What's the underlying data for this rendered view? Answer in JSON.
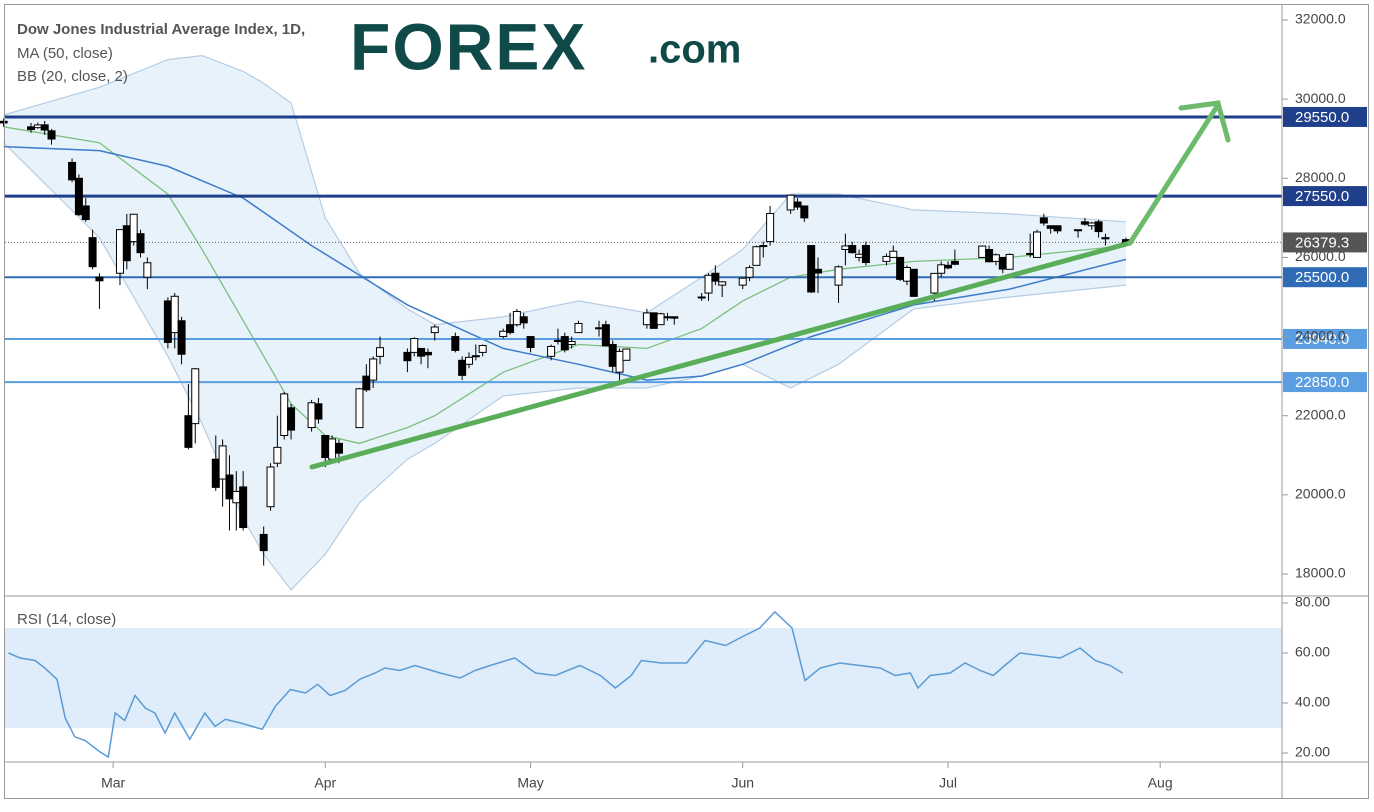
{
  "logo": {
    "brand": "FOREX",
    "suffix": ".com"
  },
  "chart_data": [
    {
      "type": "candlestick",
      "title": "Dow Jones Industrial Average Index, 1D,",
      "xlim": [
        13.2,
        199.8
      ],
      "ylim": [
        17469,
        32379
      ],
      "yticks": [
        {
          "value": 18000,
          "label": "18000.0"
        },
        {
          "value": 20000,
          "label": "20000.0"
        },
        {
          "value": 22000,
          "label": "22000.0"
        },
        {
          "value": 24000,
          "label": "24000.0"
        },
        {
          "value": 26000,
          "label": "26000.0"
        },
        {
          "value": 28000,
          "label": "28000.0"
        },
        {
          "value": 30000,
          "label": "30000.0"
        },
        {
          "value": 32000,
          "label": "32000.0"
        }
      ],
      "up_color": "#ffffff",
      "down_color": "#000000",
      "border_color": "#000000",
      "x": [
        13,
        17,
        18,
        19,
        20,
        23,
        24,
        25,
        26,
        27,
        30,
        31,
        32,
        33,
        34,
        37,
        38,
        39,
        40,
        41,
        44,
        45,
        46,
        47,
        48,
        51,
        52,
        53,
        54,
        55,
        58,
        59,
        60,
        61,
        62,
        65,
        66,
        67,
        68,
        72,
        73,
        74,
        75,
        76,
        79,
        80,
        81,
        82,
        83,
        86,
        87,
        88,
        89,
        90,
        93,
        94,
        95,
        96,
        97,
        100,
        101,
        102,
        103,
        104,
        107,
        108,
        109,
        110,
        111,
        115,
        116,
        117,
        118,
        121,
        122,
        123,
        124,
        125,
        128,
        129,
        130,
        131,
        132,
        135,
        136,
        137,
        138,
        139,
        142,
        143,
        144,
        145,
        146,
        149,
        150,
        151,
        152,
        156,
        157,
        158,
        159,
        160,
        163,
        164,
        165,
        166,
        167,
        170,
        171,
        172,
        173,
        174,
        177
      ],
      "open": [
        29440,
        29300,
        29280,
        29350,
        29200,
        28400,
        28000,
        27300,
        26500,
        25500,
        25600,
        26800,
        26400,
        26600,
        25500,
        24900,
        24100,
        24400,
        22000,
        21800,
        20900,
        20400,
        20500,
        19800,
        20200,
        19000,
        19700,
        20800,
        21500,
        22200,
        21700,
        22300,
        21500,
        20900,
        21300,
        21700,
        23000,
        22900,
        23500,
        23600,
        23600,
        23700,
        23600,
        24100,
        24000,
        23400,
        23300,
        23500,
        23600,
        24000,
        24300,
        24300,
        24500,
        24000,
        23500,
        23900,
        24000,
        23800,
        24100,
        24200,
        24300,
        23800,
        23100,
        23400,
        24300,
        24600,
        24300,
        24500,
        24500,
        25000,
        25100,
        25600,
        25300,
        25300,
        25500,
        25800,
        26300,
        26400,
        27200,
        27400,
        27300,
        26300,
        25700,
        25300,
        26200,
        26300,
        26000,
        26300,
        25900,
        26000,
        26000,
        25400,
        25700,
        25100,
        25600,
        25800,
        25900,
        26000,
        26200,
        25900,
        26000,
        25700,
        26100,
        26000,
        27000,
        26800,
        26800,
        26700,
        26900,
        26800,
        26900,
        26500,
        26450
      ],
      "high": [
        29510,
        29400,
        29410,
        29450,
        29250,
        28500,
        28100,
        27500,
        26700,
        25600,
        26710,
        27100,
        27100,
        26700,
        26000,
        24990,
        25100,
        24500,
        22800,
        23200,
        21500,
        21400,
        21000,
        20600,
        20600,
        19200,
        20800,
        22000,
        22600,
        22300,
        22400,
        22450,
        21500,
        21500,
        21400,
        22700,
        23300,
        23500,
        24000,
        23700,
        23980,
        23700,
        23700,
        24300,
        24100,
        23500,
        23600,
        23800,
        23800,
        24200,
        24600,
        24700,
        24600,
        24000,
        23800,
        24200,
        24100,
        24000,
        24400,
        24400,
        24400,
        23900,
        23700,
        23700,
        24700,
        24600,
        24600,
        24600,
        24500,
        25100,
        25600,
        25800,
        25400,
        25500,
        25800,
        26300,
        26400,
        27300,
        27580,
        27500,
        27300,
        26300,
        26000,
        25800,
        26600,
        26400,
        26200,
        26400,
        26100,
        26300,
        26000,
        25800,
        25700,
        25600,
        25900,
        25900,
        26200,
        26300,
        26300,
        26100,
        26000,
        26100,
        26600,
        26700,
        27100,
        26800,
        26800,
        26700,
        27000,
        26900,
        26950,
        26600,
        26500
      ],
      "low": [
        29300,
        29150,
        29250,
        29100,
        28850,
        27900,
        27050,
        26900,
        25700,
        24700,
        25300,
        25700,
        26300,
        26000,
        25200,
        23700,
        23700,
        23300,
        21150,
        21300,
        20100,
        19700,
        19100,
        19100,
        19100,
        18213,
        19600,
        20700,
        21400,
        21400,
        21600,
        21800,
        20700,
        20800,
        20800,
        21700,
        22600,
        22700,
        23300,
        23100,
        23500,
        23300,
        23200,
        23900,
        23600,
        22900,
        23200,
        23400,
        23500,
        23950,
        24050,
        24250,
        24200,
        23600,
        23400,
        23800,
        23600,
        23700,
        24100,
        24000,
        23750,
        23100,
        22800,
        23400,
        24200,
        24200,
        24300,
        24400,
        24300,
        24900,
        24900,
        25300,
        25000,
        25200,
        25400,
        25800,
        26000,
        26300,
        27100,
        27200,
        26900,
        25100,
        25100,
        24850,
        25800,
        26100,
        25900,
        25800,
        25800,
        26000,
        25400,
        25300,
        25000,
        24900,
        25500,
        25700,
        25800,
        26000,
        25880,
        25800,
        25600,
        25700,
        26000,
        26000,
        26800,
        26600,
        26600,
        26500,
        26800,
        26700,
        26500,
        26300,
        26350
      ],
      "close": [
        29398,
        29232,
        29348,
        29219,
        28992,
        27961,
        27081,
        26957,
        25766,
        25409,
        26703,
        25917,
        27091,
        26121,
        25865,
        23851,
        25018,
        23553,
        21200,
        23186,
        20189,
        21237,
        19899,
        20087,
        19174,
        18592,
        20704,
        21200,
        22552,
        21637,
        22327,
        21917,
        20943,
        21413,
        21053,
        22680,
        22654,
        23434,
        23719,
        23390,
        23950,
        23505,
        23538,
        24242,
        23650,
        23019,
        23475,
        23516,
        23775,
        24134,
        24102,
        24634,
        24346,
        23724,
        23750,
        23883,
        23664,
        23875,
        24331,
        24222,
        23765,
        23248,
        23625,
        23685,
        24597,
        24207,
        24576,
        24474,
        24465,
        24995,
        25548,
        25401,
        25383,
        25475,
        25742,
        26270,
        26282,
        27111,
        27572,
        27273,
        27000,
        25128,
        25606,
        25763,
        26290,
        26120,
        26080,
        25871,
        26025,
        26156,
        25445,
        25746,
        25016,
        25596,
        25813,
        25735,
        25827,
        26287,
        25890,
        26067,
        25706,
        26075,
        26086,
        26643,
        26870,
        26735,
        26672,
        26681,
        26840,
        26870,
        26653,
        26470,
        26379.3
      ],
      "ma": {
        "name": "MA (50, close)",
        "color": "#3d7cc9",
        "x": [
          13,
          27,
          37,
          48,
          58,
          72,
          86,
          97,
          107,
          115,
          121,
          131,
          146,
          160,
          177
        ],
        "values": [
          28800,
          28700,
          28300,
          27500,
          26300,
          24800,
          23700,
          23300,
          22900,
          23000,
          23300,
          24000,
          24800,
          25200,
          25950
        ]
      },
      "bb": {
        "name": "BB (20, close, 2)",
        "color": "#b5cde4",
        "basis_color": "#7cc07c",
        "fill": "#e8f2fb",
        "x": [
          13,
          27,
          37,
          42,
          48,
          51,
          55,
          60,
          65,
          72,
          76,
          86,
          97,
          107,
          115,
          121,
          128,
          135,
          146,
          160,
          177
        ],
        "upper": [
          29600,
          30300,
          31000,
          31100,
          30700,
          30400,
          29900,
          27000,
          25600,
          24700,
          24300,
          24500,
          24900,
          24600,
          25500,
          26200,
          27600,
          27600,
          27200,
          27100,
          26900
        ],
        "basis": [
          29300,
          28900,
          27600,
          26200,
          24400,
          23500,
          22300,
          21500,
          21300,
          21700,
          22000,
          23100,
          23800,
          23700,
          24200,
          24900,
          25500,
          25700,
          25900,
          26000,
          26300
        ],
        "lower": [
          28900,
          26500,
          23500,
          21800,
          19400,
          18500,
          17600,
          18500,
          19800,
          20900,
          21300,
          22500,
          22700,
          22700,
          23000,
          23300,
          22700,
          23300,
          24700,
          25000,
          25300
        ]
      },
      "levels": [
        {
          "value": 29550,
          "label": "29550.0",
          "color": "#1f3f8a"
        },
        {
          "value": 27550,
          "label": "27550.0",
          "color": "#1f3f8a"
        },
        {
          "value": 25500,
          "label": "25500.0",
          "color": "#2f6cb5"
        },
        {
          "value": 23940,
          "label": "23940.0",
          "color": "#5a9de0"
        },
        {
          "value": 22850,
          "label": "22850.0",
          "color": "#5a9de0"
        }
      ],
      "last_price": 26379.3,
      "last_color": "#555555"
    },
    {
      "type": "line",
      "title": "RSI (14, close)",
      "color": "#5b9bd5",
      "band": [
        30,
        70
      ],
      "band_color": "#d6e8f8",
      "xlim": [
        13.2,
        199.8
      ],
      "ylim": [
        17.2,
        82.4
      ],
      "yticks": [
        {
          "value": 20,
          "label": "20.00"
        },
        {
          "value": 40,
          "label": "40.00"
        },
        {
          "value": 60,
          "label": "60.00"
        },
        {
          "value": 80,
          "label": "80.00"
        }
      ],
      "xticks": [
        {
          "value": 29,
          "label": "Mar"
        },
        {
          "value": 60,
          "label": "Apr"
        },
        {
          "value": 90,
          "label": "May"
        },
        {
          "value": 121,
          "label": "Jun"
        },
        {
          "value": 151,
          "label": "Jul"
        },
        {
          "value": 182,
          "label": "Aug"
        }
      ],
      "x": [
        13.7,
        15.4,
        17.6,
        19,
        20.8,
        22,
        23.4,
        24.9,
        27.1,
        28.3,
        29.3,
        30.7,
        32.2,
        33.7,
        35.1,
        36.6,
        38,
        40.2,
        42.4,
        43.9,
        45.4,
        47.6,
        50.8,
        52.7,
        54.9,
        57.1,
        58.9,
        60.7,
        62.9,
        65.1,
        67.3,
        68.7,
        70.9,
        73.1,
        76.8,
        79.7,
        81.9,
        84.1,
        87.7,
        90.7,
        93.6,
        97.2,
        100.2,
        102.4,
        104.7,
        106.2,
        109.1,
        112.8,
        115.5,
        118.5,
        121.3,
        123.5,
        125.7,
        128.2,
        130.1,
        132.3,
        135.2,
        138.1,
        141.1,
        143.3,
        145.5,
        146.6,
        148.4,
        151.3,
        153.5,
        155.7,
        157.6,
        159.3,
        161.5,
        164.4,
        167.4,
        170.3,
        172.5,
        174.7,
        176.5
      ],
      "values": [
        60,
        58,
        57,
        54,
        49.5,
        34,
        26.5,
        25,
        20.4,
        18.4,
        36,
        33,
        43,
        38,
        36,
        28,
        36,
        25.5,
        36,
        30.6,
        33.5,
        32,
        29.5,
        38.7,
        45.4,
        44,
        47.5,
        43,
        45,
        49.6,
        52,
        54,
        53,
        55,
        52,
        50,
        53,
        55,
        58,
        52,
        51,
        55,
        51,
        46,
        51,
        57,
        56,
        56,
        65,
        63,
        67,
        70,
        76.5,
        70,
        49,
        54,
        56,
        55,
        54,
        51,
        52,
        46,
        51,
        52,
        56,
        53,
        51,
        55,
        60,
        59,
        58,
        62,
        57,
        55,
        52
      ]
    }
  ]
}
